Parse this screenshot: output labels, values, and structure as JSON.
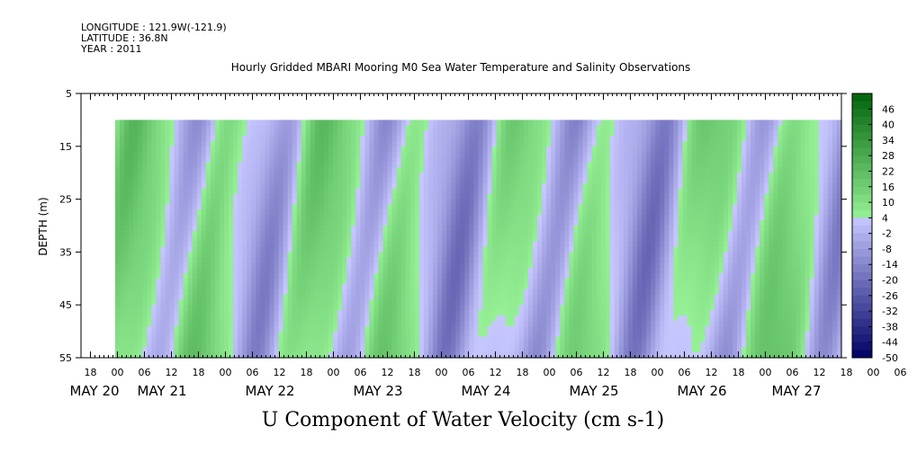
{
  "header": {
    "longitude": "LONGITUDE : 121.9W(-121.9)",
    "latitude": "LATITUDE : 36.8N",
    "year": "YEAR : 2011"
  },
  "chart_data": {
    "type": "heatmap",
    "title": "Hourly Gridded MBARI Mooring M0 Sea Water Temperature and Salinity Observations",
    "xlabel": "U Component of Water Velocity (cm s-1)",
    "ylabel": "DEPTH (m)",
    "ylim": [
      5,
      55
    ],
    "y_inverted": true,
    "y_ticks": [
      5,
      15,
      25,
      35,
      45,
      55
    ],
    "data_depth_range": [
      10,
      55
    ],
    "x_hour_ticks": [
      "18",
      "00",
      "06",
      "12",
      "18",
      "00",
      "06",
      "12",
      "18",
      "00",
      "06",
      "12",
      "18",
      "00",
      "06",
      "12",
      "18",
      "00",
      "06",
      "12",
      "18",
      "00",
      "06",
      "12",
      "18",
      "00",
      "06",
      "12",
      "18",
      "00",
      "06",
      "12"
    ],
    "x_day_labels": [
      "MAY 20",
      "MAY 21",
      "MAY 22",
      "MAY 23",
      "MAY 24",
      "MAY 25",
      "MAY 26",
      "MAY 27"
    ],
    "colorbar": {
      "labels": [
        "46",
        "40",
        "34",
        "28",
        "22",
        "16",
        "10",
        "4",
        "-2",
        "-8",
        "-14",
        "-20",
        "-26",
        "-32",
        "-38",
        "-44",
        "-50"
      ],
      "range": [
        -50,
        52
      ],
      "step": 3
    }
  }
}
